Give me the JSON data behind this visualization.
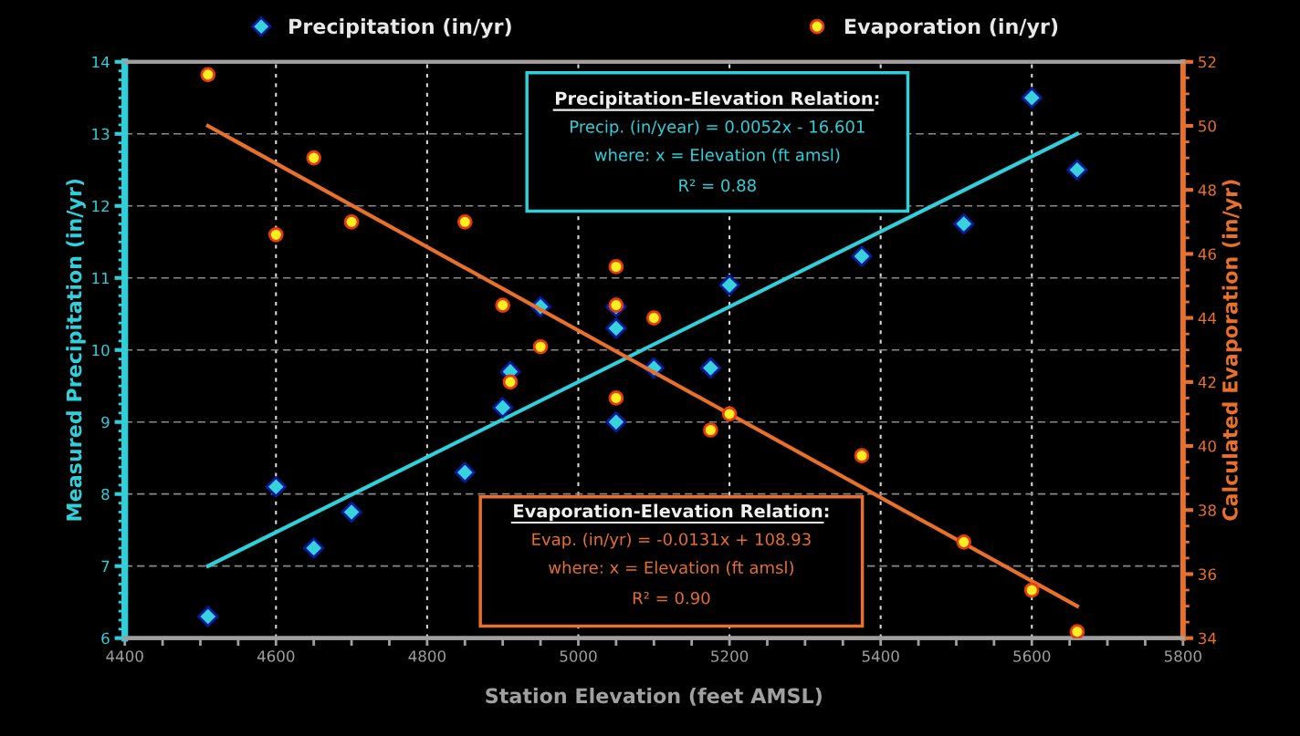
{
  "chart_data": {
    "type": "scatter",
    "xlabel": "Station Elevation (feet AMSL)",
    "ylabel": "Measured Precipitation (in/yr)",
    "y2label": "Calculated Evaporation (in/yr)",
    "xlim": [
      4400,
      5800
    ],
    "xticks": [
      4400,
      4600,
      4800,
      5000,
      5200,
      5400,
      5600,
      5800
    ],
    "ylim": [
      6,
      14
    ],
    "yticks": [
      6,
      7,
      8,
      9,
      10,
      11,
      12,
      13,
      14
    ],
    "y2lim": [
      34,
      52
    ],
    "y2ticks": [
      34,
      36,
      38,
      40,
      42,
      44,
      46,
      48,
      50,
      52
    ],
    "grid": true,
    "legend": "top",
    "series": [
      {
        "name": "Precipitation (in/yr)",
        "marker": "diamond",
        "color": "#36d3dd",
        "x": [
          4510,
          4600,
          4650,
          4700,
          4850,
          4900,
          4910,
          4950,
          5050,
          5050,
          5050,
          5100,
          5175,
          5200,
          5375,
          5510,
          5600,
          5660
        ],
        "values": [
          6.3,
          8.1,
          7.25,
          7.75,
          8.3,
          9.2,
          9.7,
          10.6,
          10.6,
          10.3,
          9.0,
          9.75,
          9.75,
          10.9,
          11.3,
          11.75,
          13.5,
          12.5
        ]
      },
      {
        "name": "Evaporation (in/yr)",
        "marker": "circle",
        "color": "#ffee22",
        "axis": "y2",
        "x": [
          4510,
          4600,
          4650,
          4700,
          4850,
          4900,
          4910,
          4950,
          5050,
          5050,
          5050,
          5100,
          5175,
          5200,
          5375,
          5510,
          5600,
          5660
        ],
        "values": [
          51.6,
          46.6,
          49.0,
          47.0,
          47.0,
          44.4,
          42.0,
          43.1,
          45.6,
          44.4,
          41.5,
          44.0,
          40.5,
          41.0,
          39.7,
          37.0,
          35.5,
          34.2
        ]
      },
      {
        "type": "line",
        "color": "#2fd0da",
        "x": [
          4510,
          5660
        ],
        "values": [
          7.0,
          13.0
        ]
      },
      {
        "type": "line",
        "color": "#e8702a",
        "axis": "y2",
        "x": [
          4510,
          5660
        ],
        "values": [
          50.0,
          35.0
        ]
      }
    ],
    "annotations": [
      "Precipitation-Elevation Relation:",
      "Precip. (in/year) = 0.0052x - 16.601",
      "where: x = Elevation (ft amsl)",
      "R² = 0.88",
      "Evaporation-Elevation Relation:",
      "Evap. (in/yr) = -0.0131x + 108.93",
      "where: x = Elevation (ft amsl)",
      "R² = 0.90"
    ]
  }
}
